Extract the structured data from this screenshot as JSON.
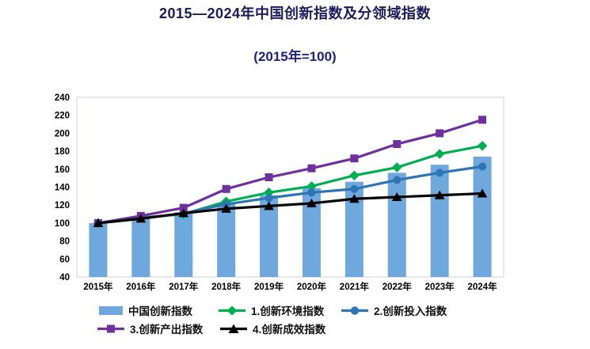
{
  "header": {
    "title": "2015—2024年中国创新指数及分领域指数",
    "subtitle": "(2015年=100)"
  },
  "colors": {
    "title_text": "#1b1b60",
    "subtitle_text": "#202085",
    "bar_fill": "#6FA8DC",
    "env_line": "#00B050",
    "input_line": "#2E75B6",
    "output_line": "#7030A0",
    "effect_line": "#000000",
    "plot_border": "#d7d7e8"
  },
  "chart_data": {
    "type": "bar",
    "subtype": "combo-bar-line",
    "title": "2015—2024年中国创新指数及分领域指数",
    "subtitle": "(2015年=100)",
    "xlabel": "",
    "ylabel": "",
    "ylim": [
      40,
      240
    ],
    "yticks": [
      240,
      220,
      200,
      180,
      160,
      140,
      120,
      100,
      80,
      60,
      40
    ],
    "grid": false,
    "legend_position": "bottom",
    "categories": [
      "2015年",
      "2016年",
      "2017年",
      "2018年",
      "2019年",
      "2020年",
      "2021年",
      "2022年",
      "2023年",
      "2024年"
    ],
    "series": [
      {
        "name": "中国创新指数",
        "type": "bar",
        "marker": "bar",
        "color": "#6FA8DC",
        "values": [
          100,
          106,
          112,
          122,
          131,
          139,
          146,
          156,
          165,
          174
        ]
      },
      {
        "name": "1.创新环境指数",
        "type": "line",
        "marker": "diamond",
        "color": "#00B050",
        "values": [
          100,
          106,
          110,
          124,
          134,
          141,
          153,
          162,
          177,
          186
        ]
      },
      {
        "name": "2.创新投入指数",
        "type": "line",
        "marker": "circle",
        "color": "#2E75B6",
        "values": [
          100,
          105,
          111,
          121,
          128,
          134,
          138,
          148,
          156,
          163
        ]
      },
      {
        "name": "3.创新产出指数",
        "type": "line",
        "marker": "square",
        "color": "#7030A0",
        "values": [
          100,
          108,
          117,
          138,
          151,
          161,
          172,
          188,
          200,
          215
        ]
      },
      {
        "name": "4.创新成效指数",
        "type": "line",
        "marker": "triangle",
        "color": "#000000",
        "values": [
          100,
          105,
          111,
          116,
          119,
          122,
          127,
          129,
          131,
          133
        ]
      }
    ]
  }
}
